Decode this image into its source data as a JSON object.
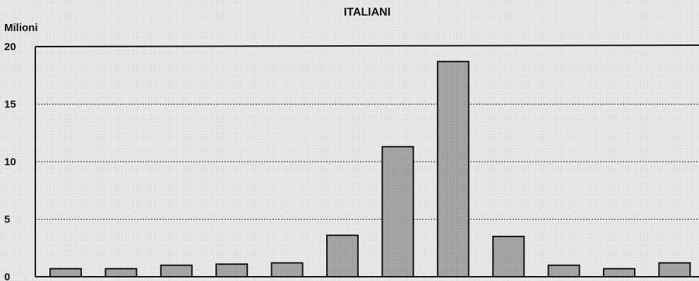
{
  "chart_data": {
    "type": "bar",
    "title": "ITALIANI",
    "ylabel": "Milioni",
    "xlabel": "",
    "ylim": [
      0,
      20
    ],
    "yticks": [
      0,
      5,
      10,
      15,
      20
    ],
    "grid": true,
    "categories": [
      "",
      "",
      "",
      "",
      "",
      "",
      "",
      "",
      "",
      "",
      "",
      ""
    ],
    "values": [
      0.7,
      0.7,
      1.0,
      1.1,
      1.2,
      3.6,
      11.3,
      18.7,
      3.5,
      1.0,
      0.7,
      1.2
    ],
    "colors": {
      "bar_fill": "#a8a8a8",
      "bar_stroke": "#111111",
      "axis": "#111111",
      "grid": "#222222"
    }
  }
}
